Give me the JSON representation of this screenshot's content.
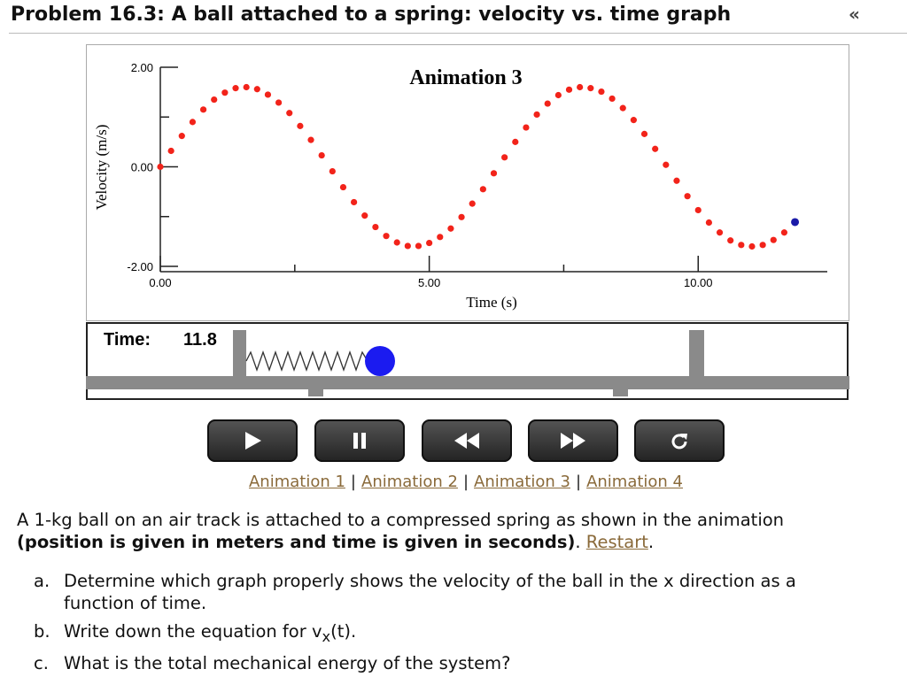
{
  "header": {
    "title": "Problem 16.3: A ball attached to a spring: velocity vs. time graph",
    "nav_back": "«"
  },
  "chart_data": {
    "type": "scatter",
    "title": "Animation 3",
    "x_label": "Time (s)",
    "y_label": "Velocity (m/s)",
    "x": [
      0,
      0.2,
      0.4,
      0.6,
      0.8,
      1.0,
      1.2,
      1.4,
      1.6,
      1.8,
      2.0,
      2.2,
      2.4,
      2.6,
      2.8,
      3.0,
      3.2,
      3.4,
      3.6,
      3.8,
      4.0,
      4.2,
      4.4,
      4.6,
      4.8,
      5.0,
      5.2,
      5.4,
      5.6,
      5.8,
      6.0,
      6.2,
      6.4,
      6.6,
      6.8,
      7.0,
      7.2,
      7.4,
      7.6,
      7.8,
      8.0,
      8.2,
      8.4,
      8.6,
      8.8,
      9.0,
      9.2,
      9.4,
      9.6,
      9.8,
      10.0,
      10.2,
      10.4,
      10.6,
      10.8,
      11.0,
      11.2,
      11.4,
      11.6,
      11.8
    ],
    "values": [
      0,
      0.32,
      0.62,
      0.9,
      1.15,
      1.35,
      1.49,
      1.58,
      1.6,
      1.56,
      1.45,
      1.29,
      1.08,
      0.82,
      0.54,
      0.23,
      -0.09,
      -0.41,
      -0.71,
      -0.98,
      -1.21,
      -1.39,
      -1.52,
      -1.59,
      -1.59,
      -1.53,
      -1.41,
      -1.24,
      -1.01,
      -0.74,
      -0.45,
      -0.13,
      0.19,
      0.5,
      0.79,
      1.05,
      1.27,
      1.44,
      1.55,
      1.6,
      1.58,
      1.51,
      1.37,
      1.18,
      0.94,
      0.66,
      0.36,
      0.04,
      -0.28,
      -0.59,
      -0.87,
      -1.12,
      -1.32,
      -1.48,
      -1.57,
      -1.6,
      -1.57,
      -1.47,
      -1.32,
      -1.11
    ],
    "color": "#f2231a",
    "last_point_color": "#1a1aa8",
    "xlim": [
      0,
      12.4
    ],
    "ylim": [
      -2,
      2
    ],
    "xticks": [
      {
        "value": 0,
        "label": "0.00"
      },
      {
        "value": 5,
        "label": "5.00"
      },
      {
        "value": 10,
        "label": "10.00"
      }
    ],
    "x_minor_ticks": [
      2.5,
      7.5
    ],
    "yticks": [
      {
        "value": 2,
        "label": "2.00"
      },
      {
        "value": 0,
        "label": "0.00"
      },
      {
        "value": -2,
        "label": "-2.00"
      }
    ],
    "y_minor_ticks": [
      1,
      -1
    ]
  },
  "animation": {
    "time_label": "Time:",
    "time_value": "11.8"
  },
  "links": {
    "items": [
      "Animation 1",
      "Animation 2",
      "Animation 3",
      "Animation 4"
    ],
    "separator": "|"
  },
  "intro": {
    "text": "A 1-kg ball on an air track is attached to a compressed spring as shown in the animation",
    "bold": "(position is given in meters and time is given in seconds)",
    "period": ".",
    "link": "Restart"
  },
  "questions": [
    {
      "marker": "a.",
      "text": "Determine which graph properly shows the velocity of the ball in the x direction as a function of time."
    },
    {
      "marker": "b.",
      "text": "Write down the equation for v",
      "sub": "x",
      "after": "(t)."
    },
    {
      "marker": "c.",
      "text": "What is the total mechanical energy of the system?"
    }
  ]
}
